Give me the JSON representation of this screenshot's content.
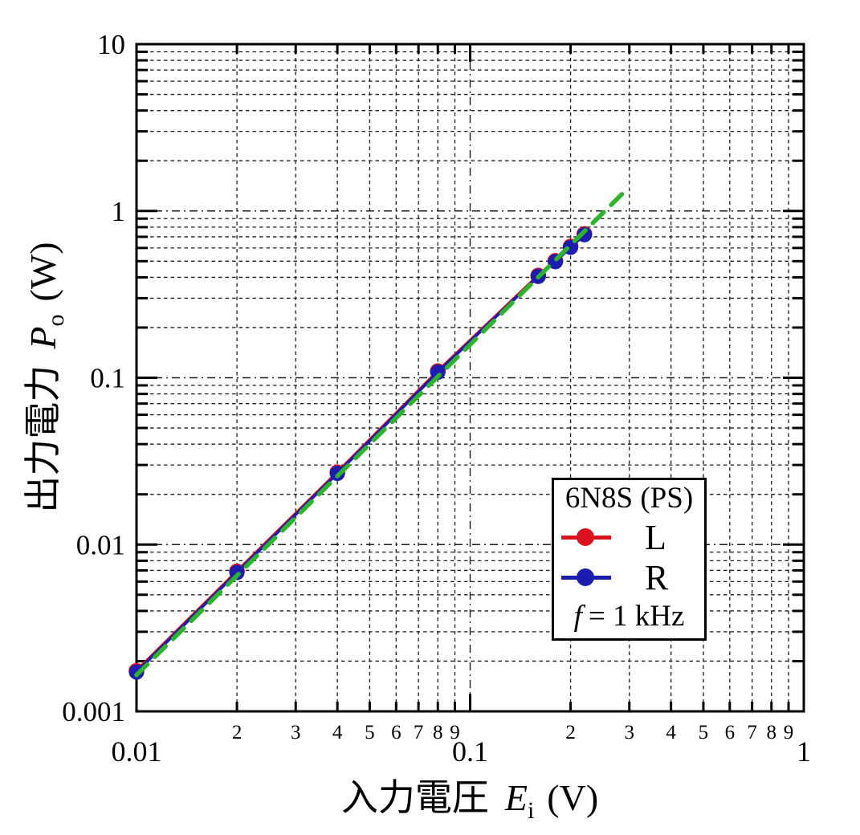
{
  "colors": {
    "axis": "#000000",
    "grid": "#1c1c1c",
    "background": "#ffffff",
    "red": "#da121e",
    "blue": "#1c1caf",
    "green": "#2db32d"
  },
  "chart_data": {
    "type": "line",
    "title": "",
    "scale": "log-log",
    "grid": "dashed-both-axes",
    "xlabel": {
      "text": "入力電圧",
      "symbol": "E",
      "subscript": "i",
      "unit": "(V)"
    },
    "ylabel": {
      "text": "出力電力",
      "symbol": "P",
      "subscript": "o",
      "unit": "(W)"
    },
    "x_axis": {
      "scale": "log",
      "min": 0.01,
      "max": 1,
      "decades": [
        0.01,
        0.1,
        1
      ],
      "decade_labels": [
        "0.01",
        "0.1",
        "1"
      ],
      "minor_labels": [
        "2",
        "3",
        "4",
        "5",
        "6",
        "7",
        "8",
        "9"
      ]
    },
    "y_axis": {
      "scale": "log",
      "min": 0.001,
      "max": 10,
      "decades": [
        0.001,
        0.01,
        0.1,
        1,
        10
      ],
      "decade_labels": [
        "0.001",
        "0.01",
        "0.1",
        "1",
        "10"
      ]
    },
    "x": [
      0.01,
      0.02,
      0.04,
      0.08,
      0.16,
      0.18,
      0.2,
      0.22
    ],
    "series": [
      {
        "name": "L",
        "color": "#da121e",
        "values": [
          0.00175,
          0.0069,
          0.0271,
          0.1095,
          0.41,
          0.502,
          0.612,
          0.728
        ]
      },
      {
        "name": "R",
        "color": "#1c1caf",
        "values": [
          0.00172,
          0.0068,
          0.0267,
          0.108,
          0.405,
          0.496,
          0.605,
          0.72
        ]
      }
    ],
    "reference_line": {
      "name": "square-law-guide",
      "color": "#2db32d",
      "style": "dashed",
      "x": [
        0.01,
        0.295
      ],
      "y": [
        0.00165,
        1.35
      ]
    },
    "legend": {
      "title": "6N8S (PS)",
      "entries": [
        {
          "label": "L",
          "color": "#da121e"
        },
        {
          "label": "R",
          "color": "#1c1caf"
        }
      ],
      "note_symbol": "f",
      "note_text": "= 1 kHz",
      "position": "lower-right"
    }
  }
}
